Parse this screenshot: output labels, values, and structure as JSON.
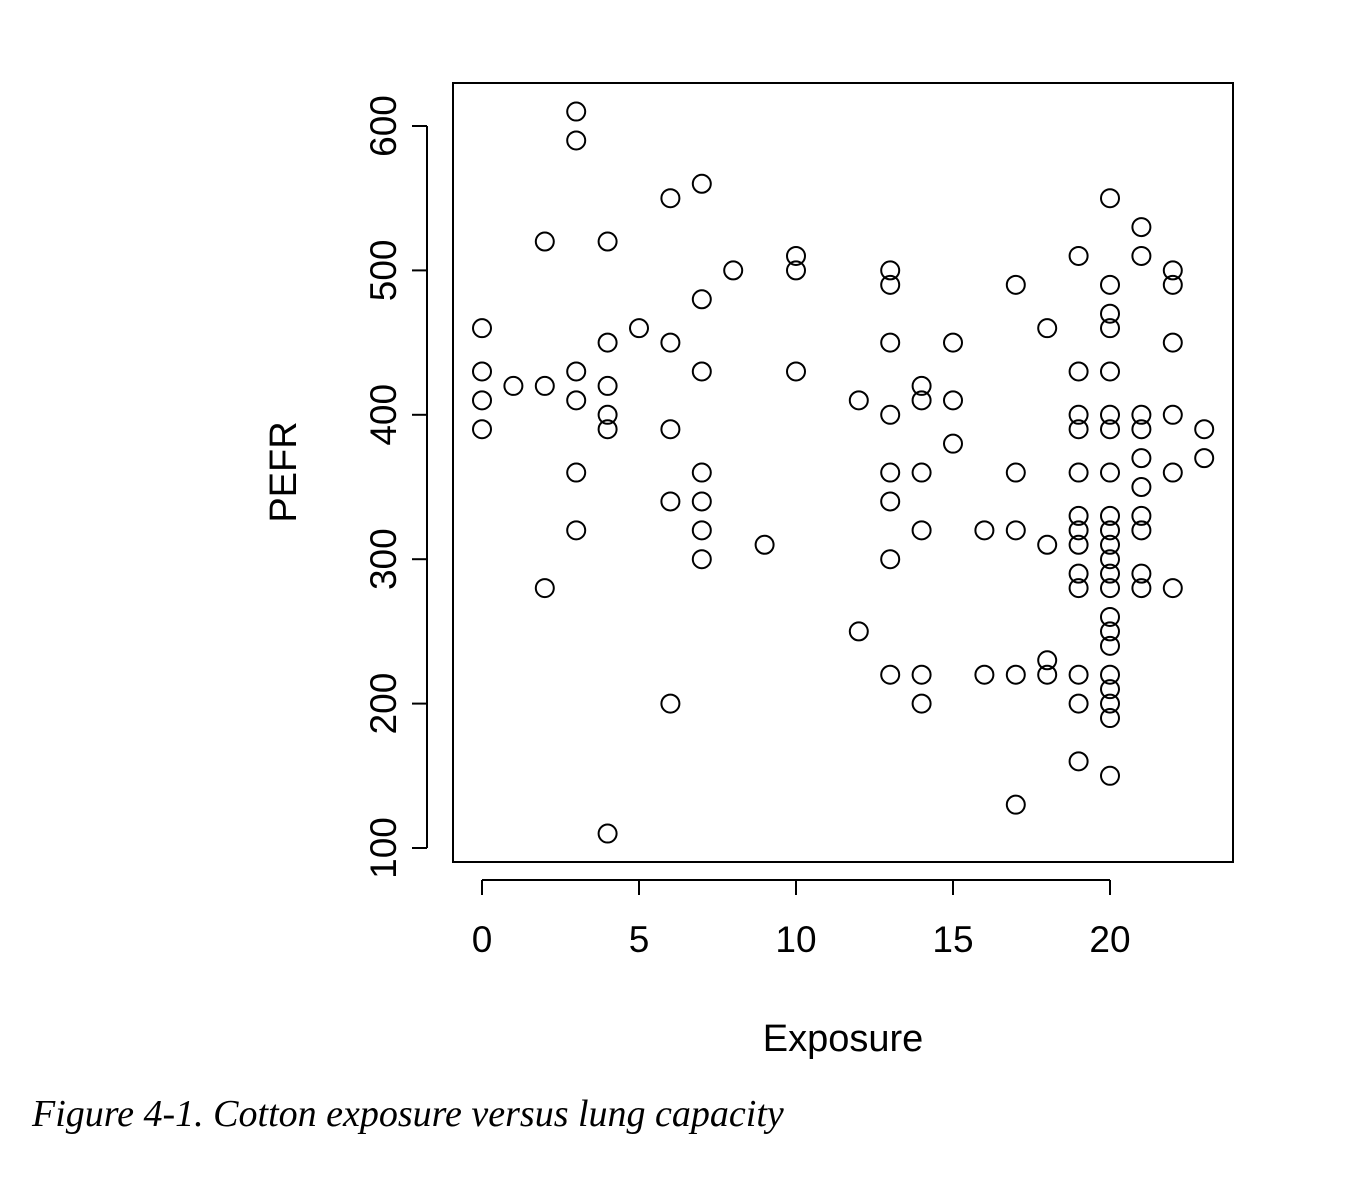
{
  "caption": "Figure 4-1. Cotton exposure versus lung capacity",
  "chart_data": {
    "type": "scatter",
    "xlabel": "Exposure",
    "ylabel": "PEFR",
    "xlim": [
      -1,
      24
    ],
    "ylim": [
      90,
      630
    ],
    "xticks": [
      0,
      5,
      10,
      15,
      20
    ],
    "yticks": [
      100,
      200,
      300,
      400,
      500,
      600
    ],
    "grid": false,
    "marker": "open-circle",
    "points": [
      [
        0,
        460
      ],
      [
        0,
        430
      ],
      [
        0,
        410
      ],
      [
        0,
        390
      ],
      [
        1,
        420
      ],
      [
        2,
        520
      ],
      [
        2,
        420
      ],
      [
        2,
        280
      ],
      [
        3,
        610
      ],
      [
        3,
        590
      ],
      [
        3,
        430
      ],
      [
        3,
        410
      ],
      [
        3,
        360
      ],
      [
        3,
        320
      ],
      [
        4,
        520
      ],
      [
        4,
        450
      ],
      [
        4,
        420
      ],
      [
        4,
        400
      ],
      [
        4,
        390
      ],
      [
        4,
        110
      ],
      [
        5,
        460
      ],
      [
        6,
        550
      ],
      [
        6,
        450
      ],
      [
        6,
        390
      ],
      [
        6,
        340
      ],
      [
        6,
        200
      ],
      [
        7,
        560
      ],
      [
        7,
        480
      ],
      [
        7,
        430
      ],
      [
        7,
        360
      ],
      [
        7,
        340
      ],
      [
        7,
        320
      ],
      [
        7,
        300
      ],
      [
        8,
        500
      ],
      [
        9,
        310
      ],
      [
        10,
        510
      ],
      [
        10,
        500
      ],
      [
        10,
        430
      ],
      [
        12,
        410
      ],
      [
        12,
        250
      ],
      [
        13,
        500
      ],
      [
        13,
        490
      ],
      [
        13,
        450
      ],
      [
        13,
        400
      ],
      [
        13,
        360
      ],
      [
        13,
        340
      ],
      [
        13,
        300
      ],
      [
        13,
        220
      ],
      [
        14,
        420
      ],
      [
        14,
        410
      ],
      [
        14,
        360
      ],
      [
        14,
        320
      ],
      [
        14,
        220
      ],
      [
        14,
        200
      ],
      [
        15,
        450
      ],
      [
        15,
        410
      ],
      [
        15,
        380
      ],
      [
        16,
        320
      ],
      [
        16,
        220
      ],
      [
        17,
        490
      ],
      [
        17,
        360
      ],
      [
        17,
        320
      ],
      [
        17,
        220
      ],
      [
        17,
        130
      ],
      [
        18,
        460
      ],
      [
        18,
        310
      ],
      [
        18,
        230
      ],
      [
        18,
        220
      ],
      [
        19,
        510
      ],
      [
        19,
        430
      ],
      [
        19,
        400
      ],
      [
        19,
        390
      ],
      [
        19,
        360
      ],
      [
        19,
        330
      ],
      [
        19,
        320
      ],
      [
        19,
        310
      ],
      [
        19,
        290
      ],
      [
        19,
        280
      ],
      [
        19,
        220
      ],
      [
        19,
        200
      ],
      [
        19,
        160
      ],
      [
        20,
        550
      ],
      [
        20,
        490
      ],
      [
        20,
        470
      ],
      [
        20,
        460
      ],
      [
        20,
        430
      ],
      [
        20,
        400
      ],
      [
        20,
        390
      ],
      [
        20,
        360
      ],
      [
        20,
        330
      ],
      [
        20,
        320
      ],
      [
        20,
        310
      ],
      [
        20,
        300
      ],
      [
        20,
        290
      ],
      [
        20,
        280
      ],
      [
        20,
        260
      ],
      [
        20,
        250
      ],
      [
        20,
        240
      ],
      [
        20,
        220
      ],
      [
        20,
        210
      ],
      [
        20,
        200
      ],
      [
        20,
        190
      ],
      [
        20,
        150
      ],
      [
        21,
        530
      ],
      [
        21,
        510
      ],
      [
        21,
        400
      ],
      [
        21,
        390
      ],
      [
        21,
        370
      ],
      [
        21,
        350
      ],
      [
        21,
        330
      ],
      [
        21,
        320
      ],
      [
        21,
        290
      ],
      [
        21,
        280
      ],
      [
        22,
        500
      ],
      [
        22,
        490
      ],
      [
        22,
        450
      ],
      [
        22,
        400
      ],
      [
        22,
        360
      ],
      [
        22,
        280
      ],
      [
        23,
        390
      ],
      [
        23,
        370
      ]
    ]
  }
}
